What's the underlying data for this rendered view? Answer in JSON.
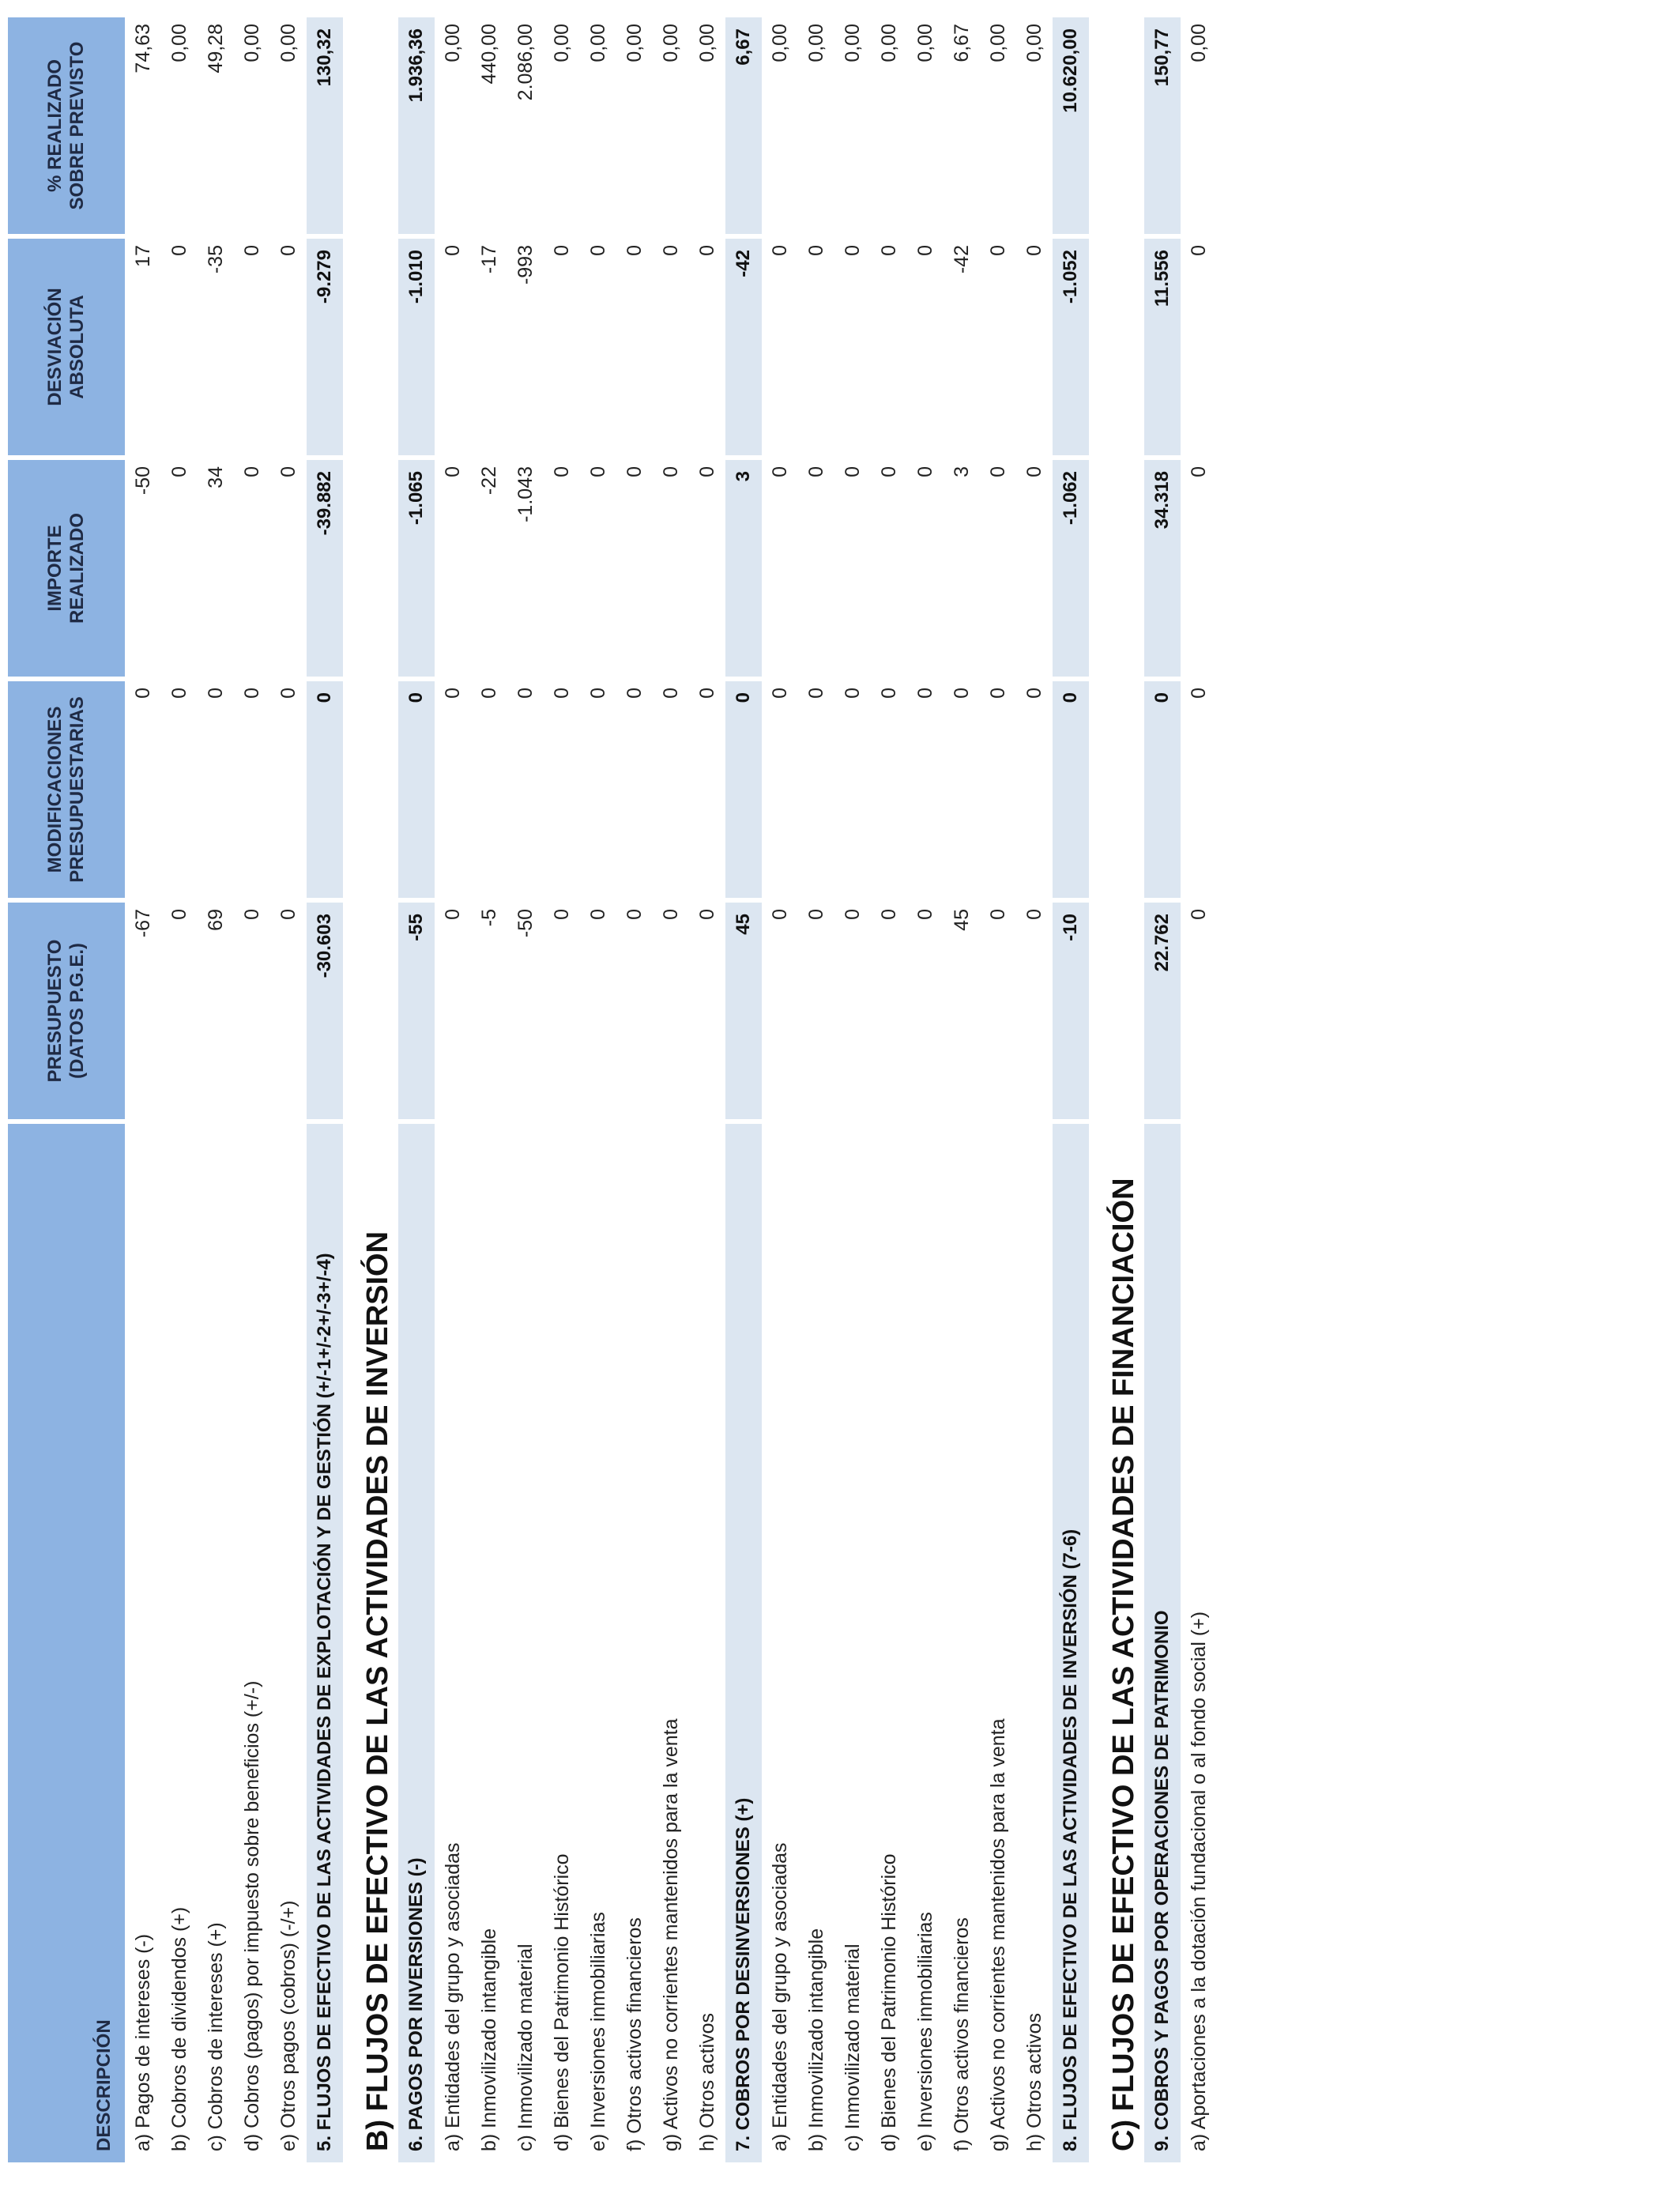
{
  "headers": {
    "descripcion": "DESCRIPCIÓN",
    "presupuesto": "PRESUPUESTO (DATOS P.G.E.)",
    "modificaciones": "MODIFICACIONES PRESUPUESTARIAS",
    "importe": "IMPORTE REALIZADO",
    "desviacion": "DESVIACIÓN ABSOLUTA",
    "porcentaje": "% REALIZADO SOBRE PREVISTO"
  },
  "rows": [
    {
      "type": "item",
      "desc": "a) Pagos de intereses (-)",
      "v": [
        "-67",
        "0",
        "-50",
        "17",
        "74,63"
      ]
    },
    {
      "type": "item",
      "desc": "b) Cobros de dividendos (+)",
      "v": [
        "0",
        "0",
        "0",
        "0",
        "0,00"
      ]
    },
    {
      "type": "item",
      "desc": "c) Cobros de intereses (+)",
      "v": [
        "69",
        "0",
        "34",
        "-35",
        "49,28"
      ]
    },
    {
      "type": "item",
      "desc": "d) Cobros (pagos) por impuesto sobre beneficios (+/-)",
      "v": [
        "0",
        "0",
        "0",
        "0",
        "0,00"
      ]
    },
    {
      "type": "item",
      "desc": "e) Otros pagos (cobros) (-/+)",
      "v": [
        "0",
        "0",
        "0",
        "0",
        "0,00"
      ]
    },
    {
      "type": "total",
      "desc": "5. FLUJOS DE EFECTIVO DE  LAS ACTIVIDADES DE EXPLOTACIÓN Y DE GESTIÓN (+/-1+/-2+/-3+/-4)",
      "v": [
        "-30.603",
        "0",
        "-39.882",
        "-9.279",
        "130,32"
      ]
    },
    {
      "type": "section",
      "desc": "B) FLUJOS DE EFECTIVO DE LAS ACTIVIDADES DE INVERSIÓN"
    },
    {
      "type": "total",
      "desc": "6. PAGOS POR INVERSIONES (-)",
      "v": [
        "-55",
        "0",
        "-1.065",
        "-1.010",
        "1.936,36"
      ]
    },
    {
      "type": "item",
      "desc": "a) Entidades del grupo y asociadas",
      "v": [
        "0",
        "0",
        "0",
        "0",
        "0,00"
      ]
    },
    {
      "type": "item",
      "desc": "b) Inmovilizado intangible",
      "v": [
        "-5",
        "0",
        "-22",
        "-17",
        "440,00"
      ]
    },
    {
      "type": "item",
      "desc": "c) Inmovilizado material",
      "v": [
        "-50",
        "0",
        "-1.043",
        "-993",
        "2.086,00"
      ]
    },
    {
      "type": "item",
      "desc": "d) Bienes del Patrimonio Histórico",
      "v": [
        "0",
        "0",
        "0",
        "0",
        "0,00"
      ]
    },
    {
      "type": "item",
      "desc": "e) Inversiones inmobiliarias",
      "v": [
        "0",
        "0",
        "0",
        "0",
        "0,00"
      ]
    },
    {
      "type": "item",
      "desc": "f) Otros activos financieros",
      "v": [
        "0",
        "0",
        "0",
        "0",
        "0,00"
      ]
    },
    {
      "type": "item",
      "desc": "g) Activos no corrientes mantenidos para la venta",
      "v": [
        "0",
        "0",
        "0",
        "0",
        "0,00"
      ]
    },
    {
      "type": "item",
      "desc": "h) Otros activos",
      "v": [
        "0",
        "0",
        "0",
        "0",
        "0,00"
      ]
    },
    {
      "type": "total",
      "desc": "7. COBROS POR DESINVERSIONES (+)",
      "v": [
        "45",
        "0",
        "3",
        "-42",
        "6,67"
      ]
    },
    {
      "type": "item",
      "desc": "a) Entidades del grupo y asociadas",
      "v": [
        "0",
        "0",
        "0",
        "0",
        "0,00"
      ]
    },
    {
      "type": "item",
      "desc": "b) Inmovilizado intangible",
      "v": [
        "0",
        "0",
        "0",
        "0",
        "0,00"
      ]
    },
    {
      "type": "item",
      "desc": "c) Inmovilizado material",
      "v": [
        "0",
        "0",
        "0",
        "0",
        "0,00"
      ]
    },
    {
      "type": "item",
      "desc": "d) Bienes del Patrimonio Histórico",
      "v": [
        "0",
        "0",
        "0",
        "0",
        "0,00"
      ]
    },
    {
      "type": "item",
      "desc": "e) Inversiones inmobiliarias",
      "v": [
        "0",
        "0",
        "0",
        "0",
        "0,00"
      ]
    },
    {
      "type": "item",
      "desc": "f) Otros activos financieros",
      "v": [
        "45",
        "0",
        "3",
        "-42",
        "6,67"
      ]
    },
    {
      "type": "item",
      "desc": "g) Activos no corrientes mantenidos para la venta",
      "v": [
        "0",
        "0",
        "0",
        "0",
        "0,00"
      ]
    },
    {
      "type": "item",
      "desc": "h) Otros activos",
      "v": [
        "0",
        "0",
        "0",
        "0",
        "0,00"
      ]
    },
    {
      "type": "total",
      "desc": "8. FLUJOS DE EFECTIVO DE LAS ACTIVIDADES DE INVERSIÓN (7-6)",
      "v": [
        "-10",
        "0",
        "-1.062",
        "-1.052",
        "10.620,00"
      ]
    },
    {
      "type": "section",
      "desc": "C) FLUJOS DE EFECTIVO DE  LAS ACTIVIDADES DE FINANCIACIÓN"
    },
    {
      "type": "total",
      "desc": "9. COBROS Y PAGOS POR OPERACIONES DE PATRIMONIO",
      "v": [
        "22.762",
        "0",
        "34.318",
        "11.556",
        "150,77"
      ]
    },
    {
      "type": "item",
      "desc": "a) Aportaciones a la dotación fundacional o al fondo social (+)",
      "v": [
        "0",
        "0",
        "0",
        "0",
        "0,00"
      ]
    }
  ]
}
